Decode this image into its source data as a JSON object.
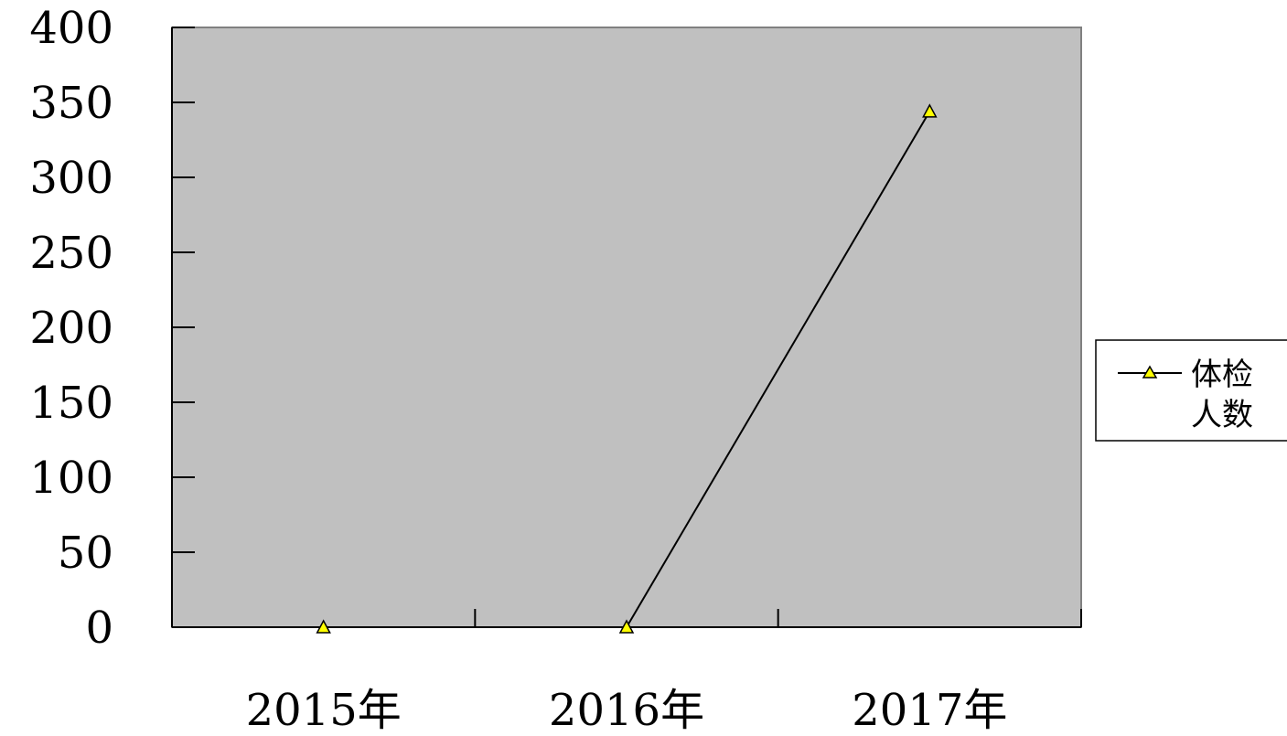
{
  "chart_data": {
    "type": "line",
    "categories": [
      "2015年",
      "2016年",
      "2017年"
    ],
    "series": [
      {
        "name": "体检人数",
        "values": [
          0,
          0,
          344
        ],
        "marker": "triangle",
        "marker_color": "#ffff00",
        "line_color": "#000000"
      }
    ],
    "y_ticks": [
      "0",
      "50",
      "100",
      "150",
      "200",
      "250",
      "300",
      "350",
      "400"
    ],
    "ylim": [
      0,
      400
    ],
    "grid": false,
    "plot_background": "#c0c0c0",
    "legend": {
      "position": "right",
      "lines": [
        "体检",
        "人数"
      ]
    }
  }
}
